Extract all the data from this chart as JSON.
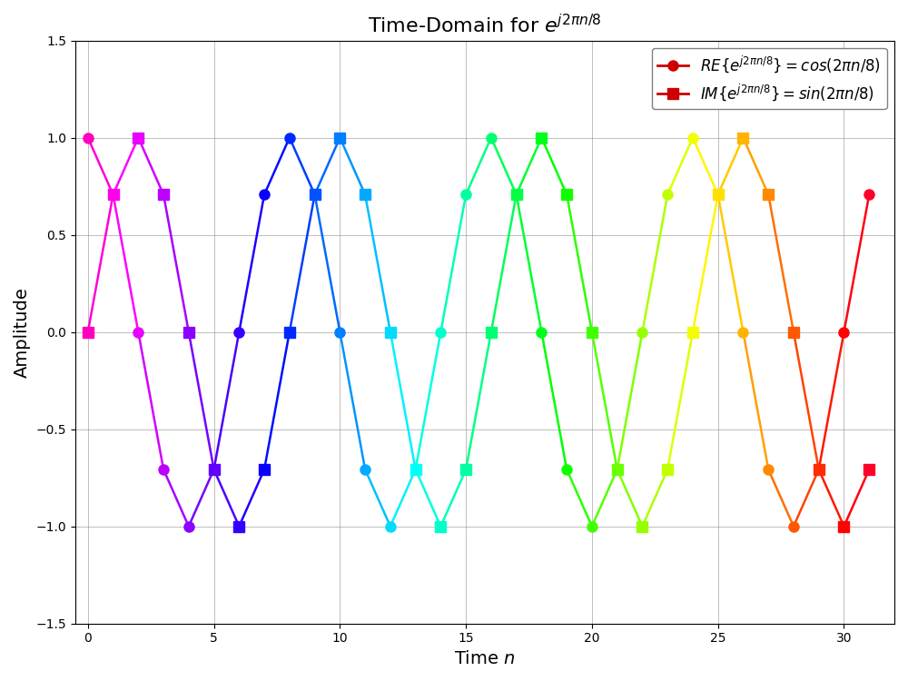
{
  "n_start": 0,
  "n_end": 31,
  "period": 8,
  "title": "Time-Domain for $e^{j2\\pi n/8}$",
  "xlabel": "Time $n$",
  "ylabel": "Amplitude",
  "ylim": [
    -1.5,
    1.5
  ],
  "xlim": [
    -0.5,
    32
  ],
  "legend_re": "$RE\\{e^{j2\\pi n/8}\\} = cos(2\\pi n/8)$",
  "legend_im": "$IM\\{e^{j2\\pi n/8}\\} = sin(2\\pi n/8)$",
  "legend_color_re": "#cc0000",
  "legend_color_im": "#cc0000",
  "marker_size_re": 8,
  "marker_size_im": 8,
  "linewidth": 1.8,
  "figsize": [
    10,
    7.5
  ],
  "dpi": 100,
  "colormap": "gist_rainbow_r",
  "cmap_vmin": 0,
  "cmap_vmax": 31
}
